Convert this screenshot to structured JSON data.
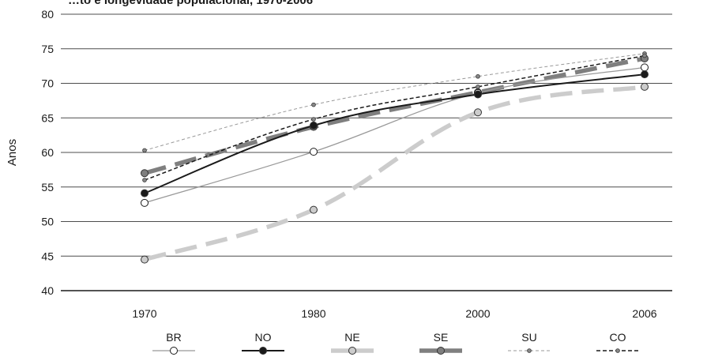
{
  "chart_data": {
    "type": "line",
    "title": "…to e longevidade populacional, 1970-2006",
    "ylabel": "Anos",
    "xlabel": "",
    "ylim": [
      40,
      80
    ],
    "yticks": [
      40,
      45,
      50,
      55,
      60,
      65,
      70,
      75,
      80
    ],
    "x": [
      "1970",
      "1980",
      "2000",
      "2006"
    ],
    "grid": "horizontal",
    "legend_position": "bottom",
    "series": [
      {
        "name": "BR",
        "values": [
          52.7,
          60.1,
          68.6,
          72.3
        ],
        "color": "#999999",
        "style": "solid-thin",
        "marker": "open-circle"
      },
      {
        "name": "NO",
        "values": [
          54.1,
          63.9,
          68.4,
          71.3
        ],
        "color": "#1a1a1a",
        "style": "solid",
        "marker": "filled-circle"
      },
      {
        "name": "NE",
        "values": [
          44.5,
          51.7,
          65.8,
          69.5
        ],
        "color": "#cccccc",
        "style": "dashed-thick",
        "marker": "filled-circle"
      },
      {
        "name": "SE",
        "values": [
          57.0,
          63.7,
          68.7,
          73.6
        ],
        "color": "#7f7f7f",
        "style": "dashed-thick",
        "marker": "filled-circle"
      },
      {
        "name": "SU",
        "values": [
          60.3,
          66.9,
          71.0,
          74.3
        ],
        "color": "#999999",
        "style": "dashed-thin",
        "marker": "small-dot"
      },
      {
        "name": "CO",
        "values": [
          56.0,
          64.8,
          69.5,
          74.0
        ],
        "color": "#1a1a1a",
        "style": "dashed",
        "marker": "small-dot"
      }
    ]
  }
}
